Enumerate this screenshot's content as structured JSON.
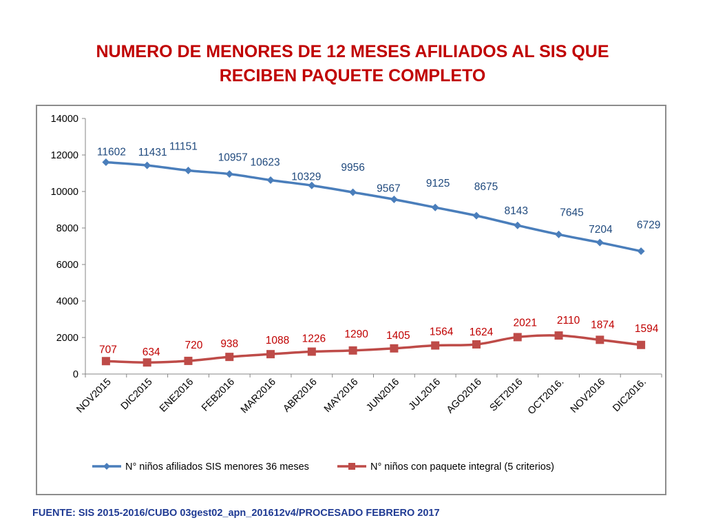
{
  "title": {
    "line1": "NUMERO DE MENORES DE 12 MESES AFILIADOS AL SIS QUE",
    "line2": "RECIBEN PAQUETE COMPLETO"
  },
  "source": "FUENTE: SIS 2015-2016/CUBO 03gest02_apn_201612v4/PROCESADO FEBRERO 2017",
  "colors": {
    "blue": "#4a7ebb",
    "red": "#be4b48",
    "title": "#c00000"
  },
  "chart_data": {
    "type": "line",
    "categories": [
      "NOV2015",
      "DIC2015",
      "ENE2016",
      "FEB2016",
      "MAR2016",
      "ABR2016",
      "MAY2016",
      "JUN2016",
      "JUL2016",
      "AGO2016",
      "SET2016",
      "OCT2016.",
      "NOV2016",
      "DIC2016."
    ],
    "series": [
      {
        "name": "N° niños afiliados SIS menores 36 meses",
        "marker": "diamond",
        "color": "#4a7ebb",
        "values": [
          11602,
          11431,
          11151,
          10957,
          10623,
          10329,
          9956,
          9567,
          9125,
          8675,
          8143,
          7645,
          7204,
          6729
        ]
      },
      {
        "name": "N° niños con paquete integral (5 criterios)",
        "marker": "square",
        "color": "#be4b48",
        "values": [
          707,
          634,
          720,
          938,
          1088,
          1226,
          1290,
          1405,
          1564,
          1624,
          2021,
          2110,
          1874,
          1594
        ]
      }
    ],
    "ylim": [
      0,
      14000
    ],
    "yticks": [
      0,
      2000,
      4000,
      6000,
      8000,
      10000,
      12000,
      14000
    ],
    "legend": "bottom",
    "grid": false
  }
}
